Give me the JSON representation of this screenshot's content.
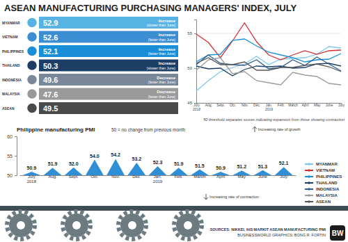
{
  "title": "ASEAN MANUFACTURING PURCHASING MANAGERS' INDEX, JULY",
  "summary": [
    {
      "country": "MYANMAR",
      "value": 52.9,
      "change": "Increase",
      "note": "(slower than June)",
      "color": "#56b3e3"
    },
    {
      "country": "VIETNAM",
      "value": 52.6,
      "change": "Increase",
      "note": "(faster than June)",
      "color": "#3c8dd2"
    },
    {
      "country": "PHILIPPINES",
      "value": 52.1,
      "change": "Increase",
      "note": "(faster than June)",
      "color": "#1a8fd8"
    },
    {
      "country": "THAILAND",
      "value": 50.3,
      "change": "Increase",
      "note": "(slower than June)",
      "color": "#1d3f66"
    },
    {
      "country": "INDONESIA",
      "value": 49.6,
      "change": "Decrease",
      "note": "(faster than June)",
      "color": "#7a8799"
    },
    {
      "country": "MALAYSIA",
      "value": 47.6,
      "change": "Decrease",
      "note": "(faster than June)",
      "color": "#9a9a9a"
    },
    {
      "country": "ASEAN",
      "value": 49.5,
      "color": "#4a4a4a"
    }
  ],
  "chart_data": [
    {
      "type": "line",
      "categories": [
        "July 2018",
        "Aug.",
        "Sept.",
        "Oct.",
        "Nov.",
        "Dec.",
        "Jan. 2019",
        "Feb.",
        "March",
        "April",
        "May",
        "June",
        "July"
      ],
      "series": [
        {
          "name": "MYANMAR",
          "color": "#7ec8ee",
          "values": [
            46.7,
            48.2,
            49.5,
            50.1,
            50.6,
            51.7,
            50.5,
            51.3,
            51.4,
            51.5,
            52.0,
            53.1,
            52.9
          ]
        },
        {
          "name": "VIETNAM",
          "color": "#d32f2f",
          "values": [
            54.9,
            53.7,
            51.5,
            53.9,
            56.5,
            53.8,
            51.9,
            51.2,
            51.9,
            52.5,
            52.0,
            52.5,
            52.6
          ]
        },
        {
          "name": "PHILIPPINES",
          "color": "#1a8fd8",
          "values": [
            50.9,
            51.9,
            52.0,
            54.0,
            54.2,
            53.2,
            52.3,
            51.9,
            51.5,
            50.9,
            51.2,
            51.3,
            52.1
          ]
        },
        {
          "name": "THAILAND",
          "color": "#1d3f66",
          "values": [
            50.3,
            49.9,
            50.0,
            48.9,
            49.8,
            50.3,
            50.2,
            50.3,
            50.0,
            50.1,
            50.6,
            50.7,
            50.3
          ]
        },
        {
          "name": "INDONESIA",
          "color": "#2d5d8e",
          "values": [
            50.5,
            51.9,
            50.7,
            50.5,
            50.4,
            51.2,
            49.9,
            50.1,
            51.2,
            50.4,
            51.6,
            50.6,
            49.6
          ]
        },
        {
          "name": "MALAYSIA",
          "color": "#9a9a9a",
          "values": [
            49.7,
            51.2,
            51.5,
            49.2,
            49.5,
            48.2,
            47.9,
            47.6,
            49.4,
            49.0,
            48.8,
            47.8,
            47.6
          ]
        },
        {
          "name": "ASEAN",
          "color": "#555555",
          "values": [
            50.7,
            51.5,
            50.5,
            50.5,
            50.9,
            49.7,
            49.7,
            50.1,
            50.1,
            50.4,
            50.6,
            50.2,
            49.5
          ]
        }
      ],
      "ylim": [
        45,
        57
      ],
      "yticks": [
        45,
        50,
        55
      ],
      "grid": true,
      "legend": "right",
      "note": "50 threshold separates scores indicating expansion from those showing contraction"
    },
    {
      "type": "bar",
      "marker": "triangle",
      "title": "Philippine manufacturing PMI",
      "subtitle": "50 = no change from previous month",
      "categories": [
        "July 2018",
        "Aug.",
        "Sept.",
        "Oct.",
        "Nov.",
        "Dec.",
        "Jan. 2019",
        "Feb.",
        "March",
        "April",
        "May",
        "June",
        "July"
      ],
      "values": [
        50.9,
        51.9,
        52.0,
        54.0,
        54.2,
        53.2,
        52.3,
        51.9,
        51.5,
        50.9,
        51.2,
        51.3,
        52.1
      ],
      "value_labels": [
        "50.9",
        "51.9",
        "52.0",
        "54.0",
        "54.2",
        "53.2",
        "52.3",
        "51.9",
        "51.5",
        "50.9",
        "51.2",
        "51.3",
        "52.1"
      ],
      "color": "#2e8fd6",
      "ylim": [
        50,
        60
      ],
      "yticks": [
        50,
        55,
        60
      ],
      "data_labels": true,
      "annotations": [
        "Increasing rate of growth",
        "Increasing rate of contraction"
      ]
    }
  ],
  "sources": "SOURCES: NIKKEI, IHS MARKIT ASEAN MANUFACTURING PMI",
  "credit": "BUSINESSWORLD GRAPHICS: BONG R. FORTIN",
  "logo": "BW"
}
